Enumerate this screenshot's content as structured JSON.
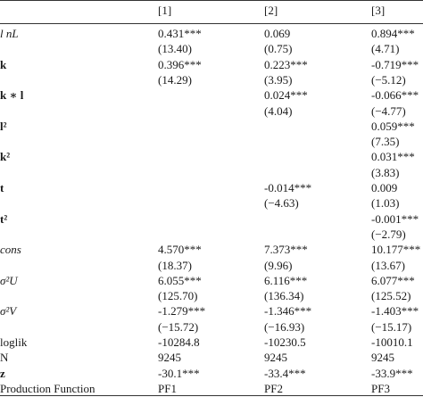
{
  "table": {
    "headers": [
      "[1]",
      "[2]",
      "[3]"
    ],
    "rows": [
      {
        "label": "l nL",
        "values": [
          "0.431***",
          "0.069",
          "0.894***"
        ]
      },
      {
        "label": "",
        "values": [
          "(13.40)",
          "(0.75)",
          "(4.71)"
        ]
      },
      {
        "label": "k",
        "values": [
          "0.396***",
          "0.223***",
          "-0.719***"
        ]
      },
      {
        "label": "",
        "values": [
          "(14.29)",
          "(3.95)",
          "(−5.12)"
        ]
      },
      {
        "label": "k ∗ l",
        "values": [
          "",
          "0.024***",
          "-0.066***"
        ]
      },
      {
        "label": "",
        "values": [
          "",
          "(4.04)",
          "(−4.77)"
        ]
      },
      {
        "label": "l²",
        "values": [
          "",
          "",
          "0.059***"
        ]
      },
      {
        "label": "",
        "values": [
          "",
          "",
          "(7.35)"
        ]
      },
      {
        "label": "k²",
        "values": [
          "",
          "",
          "0.031***"
        ]
      },
      {
        "label": "",
        "values": [
          "",
          "",
          "(3.83)"
        ]
      },
      {
        "label": "t",
        "values": [
          "",
          "-0.014***",
          "0.009"
        ]
      },
      {
        "label": "",
        "values": [
          "",
          "(−4.63)",
          "(1.03)"
        ]
      },
      {
        "label": "t²",
        "values": [
          "",
          "",
          "-0.001***"
        ]
      },
      {
        "label": "",
        "values": [
          "",
          "",
          "(−2.79)"
        ]
      },
      {
        "label": "cons",
        "values": [
          "4.570***",
          "7.373***",
          "10.177***"
        ]
      },
      {
        "label": "",
        "values": [
          "(18.37)",
          "(9.96)",
          "(13.67)"
        ]
      },
      {
        "label": "σ²U",
        "values": [
          "6.055***",
          "6.116***",
          "6.077***"
        ]
      },
      {
        "label": "",
        "values": [
          "(125.70)",
          "(136.34)",
          "(125.52)"
        ]
      },
      {
        "label": "σ²V",
        "values": [
          "-1.279***",
          "-1.346***",
          "-1.403***"
        ]
      },
      {
        "label": "",
        "values": [
          "(−15.72)",
          "(−16.93)",
          "(−15.17)"
        ]
      },
      {
        "label": "loglik",
        "values": [
          "-10284.8",
          "-10230.5",
          "-10010.1"
        ]
      },
      {
        "label": "N",
        "values": [
          "9245",
          "9245",
          "9245"
        ]
      },
      {
        "label": "z",
        "values": [
          "-30.1***",
          "-33.4***",
          "-33.9***"
        ]
      },
      {
        "label": "Production Function",
        "values": [
          "PF1",
          "PF2",
          "PF3"
        ]
      }
    ]
  }
}
